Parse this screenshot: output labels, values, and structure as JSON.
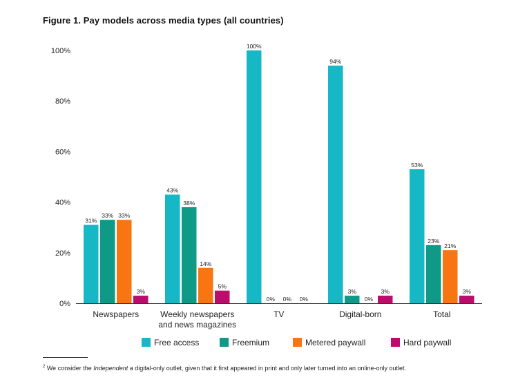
{
  "figure": {
    "title": "Figure 1. Pay models across media types (all countries)"
  },
  "chart_data": {
    "type": "bar",
    "title": "Figure 1. Pay models across media types (all countries)",
    "categories": [
      [
        "Newspapers"
      ],
      [
        "Weekly newspapers",
        "and news magazines"
      ],
      [
        "TV"
      ],
      [
        "Digital-born"
      ],
      [
        "Total"
      ]
    ],
    "series": [
      {
        "name": "Free access",
        "color": "#16b8c5",
        "values": [
          31,
          43,
          100,
          94,
          53
        ],
        "labels": [
          "31%",
          "43%",
          "100%",
          "94%",
          "53%"
        ]
      },
      {
        "name": "Freemium",
        "color": "#0e9a86",
        "values": [
          33,
          38,
          0,
          3,
          23
        ],
        "labels": [
          "33%",
          "38%",
          "0%",
          "3%",
          "23%"
        ]
      },
      {
        "name": "Metered paywall",
        "color": "#f97512",
        "values": [
          33,
          14,
          0,
          0,
          21
        ],
        "labels": [
          "33%",
          "14%",
          "0%",
          "0%",
          "21%"
        ]
      },
      {
        "name": "Hard paywall",
        "color": "#bd0c6c",
        "values": [
          3,
          5,
          0,
          3,
          3
        ],
        "labels": [
          "3%",
          "5%",
          "0%",
          "3%",
          "3%"
        ]
      }
    ],
    "ylim": [
      0,
      100
    ],
    "yticks": [
      0,
      20,
      40,
      60,
      80,
      100
    ],
    "ytick_labels": [
      "0%",
      "20%",
      "40%",
      "60%",
      "80%",
      "100%"
    ],
    "legend_position": "bottom",
    "grid": false
  },
  "footnote": {
    "marker": "2",
    "before": " We consider the ",
    "italic": "Independent",
    "after": " a digital-only outlet, given that it first appeared in print and only later turned into an online-only outlet."
  }
}
